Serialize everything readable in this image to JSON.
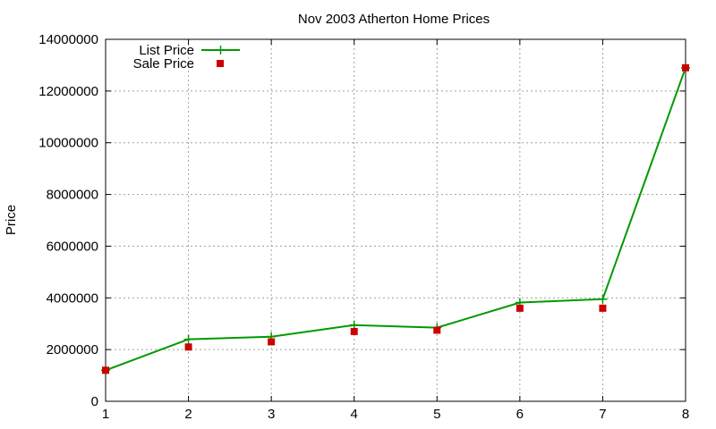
{
  "chart_data": {
    "type": "line",
    "title": "Nov 2003 Atherton Home Prices",
    "xlabel": "",
    "ylabel": "Price",
    "x": [
      1,
      2,
      3,
      4,
      5,
      6,
      7,
      8
    ],
    "xlim": [
      1,
      8
    ],
    "ylim": [
      0,
      14000000
    ],
    "xticks": [
      "1",
      "2",
      "3",
      "4",
      "5",
      "6",
      "7",
      "8"
    ],
    "yticks": [
      "0",
      "2000000",
      "4000000",
      "6000000",
      "8000000",
      "10000000",
      "12000000",
      "14000000"
    ],
    "grid": true,
    "legend_position": "top-left",
    "series": [
      {
        "name": "List Price",
        "style": "line+cross",
        "color": "#009900",
        "values": [
          1200000,
          2400000,
          2500000,
          2950000,
          2850000,
          3820000,
          3950000,
          12900000
        ]
      },
      {
        "name": "Sale Price",
        "style": "square",
        "color": "#cc0000",
        "values": [
          1200000,
          2100000,
          2300000,
          2700000,
          2750000,
          3600000,
          3600000,
          12900000
        ]
      }
    ]
  }
}
